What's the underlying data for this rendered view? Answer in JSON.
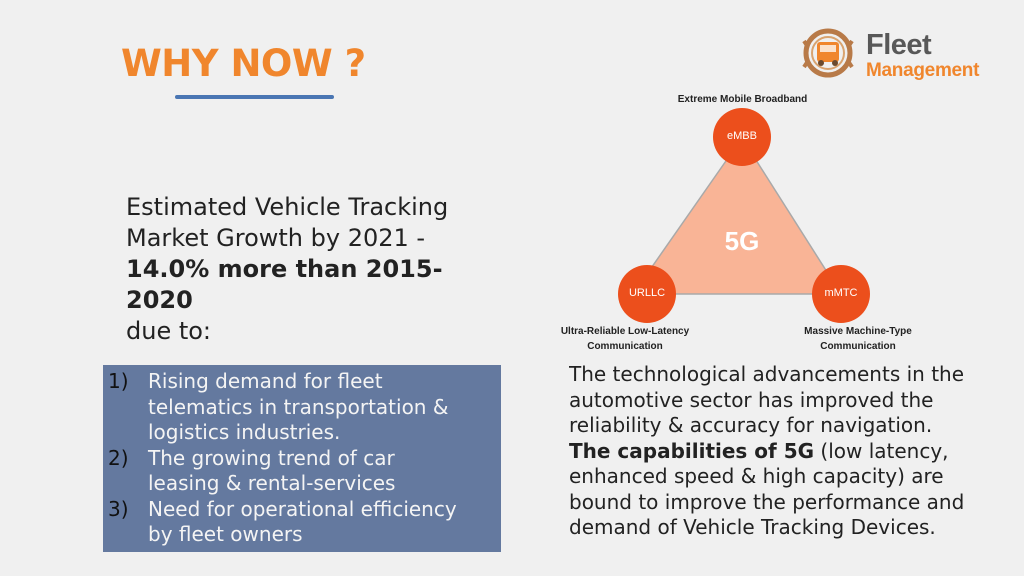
{
  "header": {
    "title": "WHY NOW ?",
    "accent_color": "#f0862d",
    "underline_color": "#4a76b3"
  },
  "logo": {
    "line1": "Fleet",
    "line2": "Management",
    "icon": "truck-gear-icon"
  },
  "stat": {
    "line1": "Estimated Vehicle Tracking",
    "line2": "Market Growth by 2021 -",
    "highlight": "14.0% more than 2015-2020",
    "line4": "due to:"
  },
  "reasons": [
    {
      "num": "1)",
      "lines": [
        "Rising demand for fleet",
        "telematics in transportation &",
        "logistics industries."
      ]
    },
    {
      "num": "2)",
      "lines": [
        "The growing trend of car",
        "leasing & rental-services"
      ]
    },
    {
      "num": "3)",
      "lines": [
        "Need for operational efficiency",
        "by fleet owners"
      ]
    }
  ],
  "diagram": {
    "center": "5G",
    "top_node": "eMBB",
    "top_label": "Extreme Mobile Broadband",
    "left_node": "URLLC",
    "left_label_1": "Ultra-Reliable Low-Latency",
    "left_label_2": "Communication",
    "right_node": "mMTC",
    "right_label_1": "Massive Machine-Type",
    "right_label_2": "Communication",
    "fill_color": "#f9b496",
    "node_color": "#ec4f1c"
  },
  "description": {
    "part1": "The technological advancements in the automotive sector has improved the reliability & accuracy for navigation. ",
    "bold": "The capabilities of 5G",
    "part2": " (low latency, enhanced speed & high capacity) are bound to improve the performance and demand of Vehicle Tracking Devices."
  }
}
